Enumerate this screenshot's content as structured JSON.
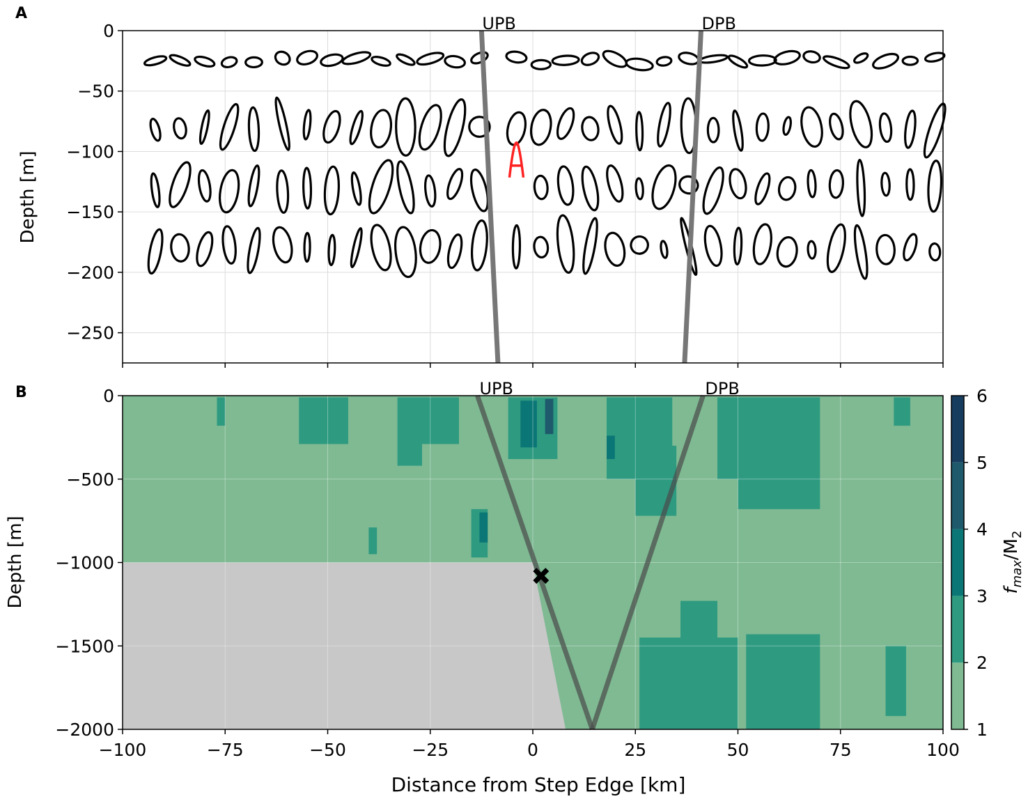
{
  "figure": {
    "shared_xlabel": "Distance from Step Edge [km]"
  },
  "chart_data": [
    {
      "type": "scatter",
      "panel_label": "A",
      "title": "",
      "xlabel": "",
      "ylabel": "Depth [m]",
      "xlim": [
        -100,
        100
      ],
      "ylim": [
        -275,
        0
      ],
      "xticks": [
        -100,
        -75,
        -50,
        -25,
        0,
        25,
        50,
        75,
        100
      ],
      "yticks": [
        0,
        -50,
        -100,
        -150,
        -200,
        -250
      ],
      "grid": true,
      "ellipse_rows_depth": [
        -25,
        -80,
        -130,
        -180
      ],
      "ellipse_columns_x": [
        -92,
        -86,
        -80,
        -74,
        -68,
        -61,
        -55,
        -49,
        -43,
        -37,
        -31,
        -25,
        -19,
        -13,
        -4,
        2,
        8,
        14,
        20,
        26,
        32,
        38,
        44,
        50,
        56,
        62,
        68,
        74,
        80,
        86,
        92,
        98
      ],
      "highlight": {
        "x": -4,
        "y": -110,
        "color": "#ff2222"
      },
      "beam_lines": [
        {
          "label": "UPB",
          "x_top": -12.5,
          "x_bottom": -8.5
        },
        {
          "label": "DPB",
          "x_top": 41,
          "x_bottom": 37
        }
      ]
    },
    {
      "type": "heatmap",
      "panel_label": "B",
      "title": "",
      "xlabel": "Distance from Step Edge [km]",
      "ylabel": "Depth [m]",
      "xlim": [
        -100,
        100
      ],
      "ylim": [
        -2000,
        0
      ],
      "xticks": [
        -100,
        -75,
        -50,
        -25,
        0,
        25,
        50,
        75,
        100
      ],
      "yticks": [
        0,
        -500,
        -1000,
        -1500,
        -2000
      ],
      "grid": true,
      "colorbar": {
        "label_main": "f",
        "label_sub": "max",
        "label_sep": "/M",
        "label_sub2": "2",
        "ticks": [
          1,
          2,
          3,
          4,
          5,
          6
        ],
        "colors": [
          "#7fba93",
          "#2e9a80",
          "#0b7676",
          "#1e5a6b",
          "#163d5e"
        ]
      },
      "bathymetry": {
        "shelf_depth": -1000,
        "bottom_depth": -2000,
        "slope_x": [
          0,
          8
        ],
        "color": "#c8c8c8"
      },
      "patches": [
        {
          "x0": -57,
          "x1": -45,
          "y0": -10,
          "y1": -290,
          "level": 2
        },
        {
          "x0": -33,
          "x1": -27,
          "y0": -10,
          "y1": -420,
          "level": 2
        },
        {
          "x0": -27,
          "x1": -18,
          "y0": -10,
          "y1": -290,
          "level": 2
        },
        {
          "x0": -77,
          "x1": -75,
          "y0": -10,
          "y1": -180,
          "level": 2
        },
        {
          "x0": -6,
          "x1": 6,
          "y0": -10,
          "y1": -380,
          "level": 2
        },
        {
          "x0": -3,
          "x1": 1,
          "y0": -30,
          "y1": -310,
          "level": 3
        },
        {
          "x0": 3,
          "x1": 5,
          "y0": -20,
          "y1": -230,
          "level": 4
        },
        {
          "x0": 18,
          "x1": 34,
          "y0": -10,
          "y1": -500,
          "level": 2
        },
        {
          "x0": 25,
          "x1": 35,
          "y0": -300,
          "y1": -720,
          "level": 2
        },
        {
          "x0": 18,
          "x1": 20,
          "y0": -240,
          "y1": -380,
          "level": 3
        },
        {
          "x0": 45,
          "x1": 50,
          "y0": -10,
          "y1": -500,
          "level": 2
        },
        {
          "x0": 50,
          "x1": 70,
          "y0": -10,
          "y1": -680,
          "level": 2
        },
        {
          "x0": 88,
          "x1": 92,
          "y0": -10,
          "y1": -180,
          "level": 2
        },
        {
          "x0": -15,
          "x1": -11,
          "y0": -680,
          "y1": -970,
          "level": 2
        },
        {
          "x0": -13,
          "x1": -11,
          "y0": -700,
          "y1": -880,
          "level": 3
        },
        {
          "x0": -40,
          "x1": -38,
          "y0": -790,
          "y1": -950,
          "level": 2
        },
        {
          "x0": 26,
          "x1": 50,
          "y0": -1450,
          "y1": -2000,
          "level": 2
        },
        {
          "x0": 36,
          "x1": 45,
          "y0": -1230,
          "y1": -1460,
          "level": 2
        },
        {
          "x0": 52,
          "x1": 70,
          "y0": -1430,
          "y1": -2000,
          "level": 2
        },
        {
          "x0": 86,
          "x1": 91,
          "y0": -1500,
          "y1": -1920,
          "level": 2
        }
      ],
      "beam_lines": [
        {
          "label": "UPB",
          "points": [
            [
              -13.5,
              0
            ],
            [
              14.5,
              -2000
            ]
          ]
        },
        {
          "label": "DPB",
          "points": [
            [
              41.5,
              0
            ],
            [
              14.5,
              -2000
            ]
          ]
        }
      ],
      "marker": {
        "x": 2,
        "y": -1080,
        "symbol": "X"
      }
    }
  ]
}
